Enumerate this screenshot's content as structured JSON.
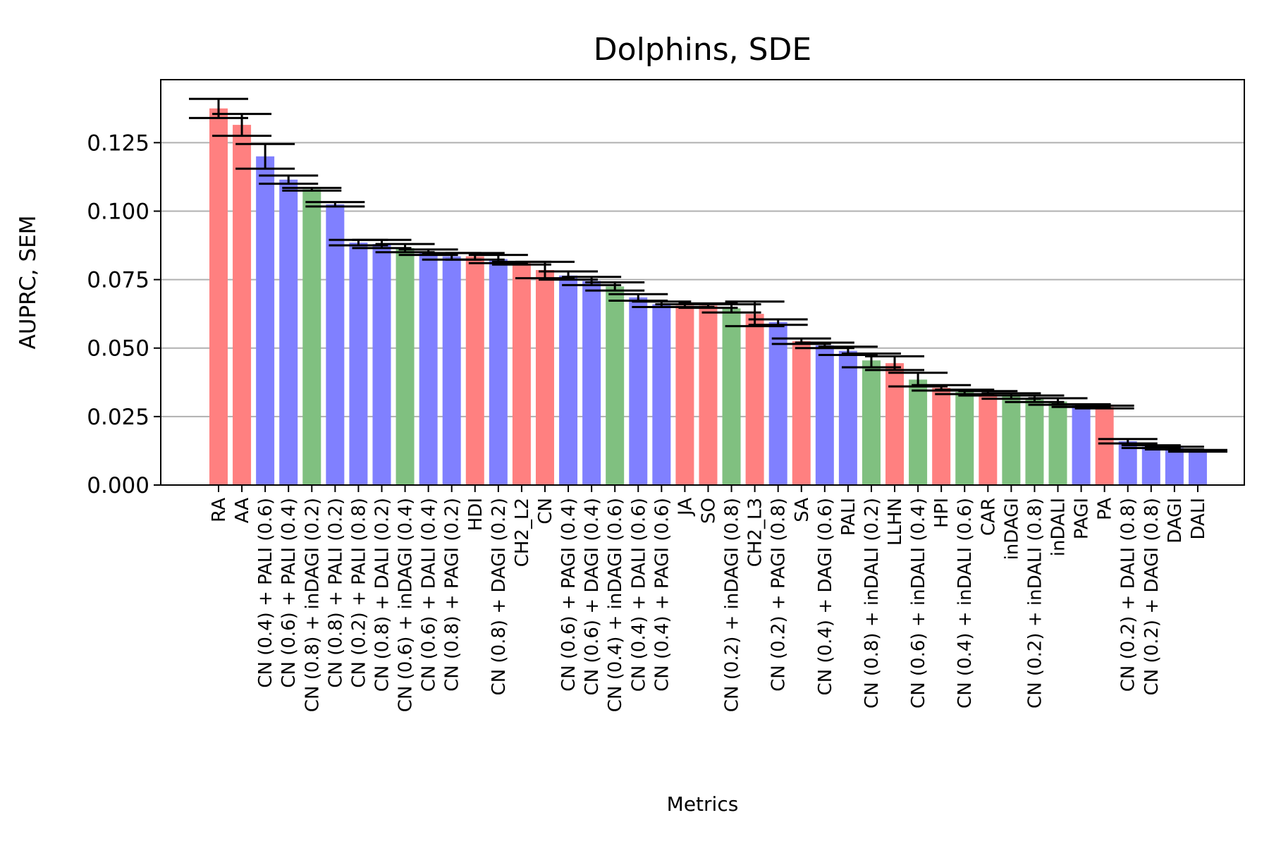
{
  "chart_data": {
    "type": "bar",
    "title": "Dolphins, SDE",
    "xlabel": "Metrics",
    "ylabel": "AUPRC, SEM",
    "ylim": [
      0,
      0.148
    ],
    "yticks": [
      0,
      0.025,
      0.05,
      0.075,
      0.1,
      0.125
    ],
    "ytick_labels": [
      "0.000",
      "0.025",
      "0.050",
      "0.075",
      "0.100",
      "0.125"
    ],
    "grid": "y",
    "colors": {
      "red": "#ff8080",
      "blue": "#8080ff",
      "green": "#80c080"
    },
    "bars": [
      {
        "label": "RA",
        "value": 0.1375,
        "err": 0.0035,
        "color": "red"
      },
      {
        "label": "AA",
        "value": 0.1315,
        "err": 0.004,
        "color": "red"
      },
      {
        "label": "CN (0.4) + PALI (0.6)",
        "value": 0.12,
        "err": 0.0045,
        "color": "blue"
      },
      {
        "label": "CN (0.6) + PALI (0.4)",
        "value": 0.1115,
        "err": 0.0015,
        "color": "blue"
      },
      {
        "label": "CN (0.8) + inDAGI (0.2)",
        "value": 0.108,
        "err": 0.0005,
        "color": "green"
      },
      {
        "label": "CN (0.8) + PALI (0.2)",
        "value": 0.1025,
        "err": 0.0008,
        "color": "blue"
      },
      {
        "label": "CN (0.2) + PALI (0.8)",
        "value": 0.0885,
        "err": 0.001,
        "color": "blue"
      },
      {
        "label": "CN (0.8) + DALI (0.2)",
        "value": 0.088,
        "err": 0.0015,
        "color": "blue"
      },
      {
        "label": "CN (0.6) + inDAGI (0.4)",
        "value": 0.0865,
        "err": 0.0015,
        "color": "green"
      },
      {
        "label": "CN (0.6) + DALI (0.4)",
        "value": 0.085,
        "err": 0.001,
        "color": "blue"
      },
      {
        "label": "CN (0.8) + PAGI (0.2)",
        "value": 0.0835,
        "err": 0.0012,
        "color": "blue"
      },
      {
        "label": "HDI",
        "value": 0.0835,
        "err": 0.0012,
        "color": "red"
      },
      {
        "label": "CN (0.8) + DAGI (0.2)",
        "value": 0.0825,
        "err": 0.0015,
        "color": "blue"
      },
      {
        "label": "CH2_L2",
        "value": 0.081,
        "err": 0.0005,
        "color": "red"
      },
      {
        "label": "CN",
        "value": 0.0785,
        "err": 0.003,
        "color": "red"
      },
      {
        "label": "CN (0.6) + PAGI (0.4)",
        "value": 0.0765,
        "err": 0.0015,
        "color": "blue"
      },
      {
        "label": "CN (0.6) + DAGI (0.4)",
        "value": 0.0745,
        "err": 0.0015,
        "color": "blue"
      },
      {
        "label": "CN (0.4) + inDAGI (0.6)",
        "value": 0.0725,
        "err": 0.0015,
        "color": "green"
      },
      {
        "label": "CN (0.4) + DALI (0.6)",
        "value": 0.0685,
        "err": 0.0012,
        "color": "blue"
      },
      {
        "label": "CN (0.4) + PAGI (0.6)",
        "value": 0.066,
        "err": 0.001,
        "color": "blue"
      },
      {
        "label": "JA",
        "value": 0.0655,
        "err": 0.0005,
        "color": "red"
      },
      {
        "label": "SO",
        "value": 0.0655,
        "err": 0.0008,
        "color": "red"
      },
      {
        "label": "CN (0.2) + inDAGI (0.8)",
        "value": 0.0645,
        "err": 0.0015,
        "color": "green"
      },
      {
        "label": "CH2_L3",
        "value": 0.0625,
        "err": 0.0045,
        "color": "red"
      },
      {
        "label": "CN (0.2) + PAGI (0.8)",
        "value": 0.0595,
        "err": 0.001,
        "color": "blue"
      },
      {
        "label": "SA",
        "value": 0.0525,
        "err": 0.001,
        "color": "red"
      },
      {
        "label": "CN (0.4) + DAGI (0.6)",
        "value": 0.051,
        "err": 0.001,
        "color": "blue"
      },
      {
        "label": "PALI",
        "value": 0.049,
        "err": 0.0015,
        "color": "blue"
      },
      {
        "label": "CN (0.8) + inDALI (0.2)",
        "value": 0.0455,
        "err": 0.0025,
        "color": "green"
      },
      {
        "label": "LLHN",
        "value": 0.0445,
        "err": 0.0025,
        "color": "red"
      },
      {
        "label": "CN (0.6) + inDALI (0.4)",
        "value": 0.0385,
        "err": 0.0025,
        "color": "green"
      },
      {
        "label": "HPI",
        "value": 0.0355,
        "err": 0.001,
        "color": "red"
      },
      {
        "label": "CN (0.4) + inDALI (0.6)",
        "value": 0.034,
        "err": 0.0008,
        "color": "green"
      },
      {
        "label": "CAR",
        "value": 0.0335,
        "err": 0.0008,
        "color": "red"
      },
      {
        "label": "inDAGI",
        "value": 0.0325,
        "err": 0.001,
        "color": "green"
      },
      {
        "label": "CN (0.2) + inDALI (0.8)",
        "value": 0.0315,
        "err": 0.0012,
        "color": "green"
      },
      {
        "label": "inDALI",
        "value": 0.0305,
        "err": 0.0012,
        "color": "green"
      },
      {
        "label": "PAGI",
        "value": 0.029,
        "err": 0.0005,
        "color": "blue"
      },
      {
        "label": "PA",
        "value": 0.0285,
        "err": 0.0005,
        "color": "red"
      },
      {
        "label": "CN (0.2) + DALI (0.8)",
        "value": 0.016,
        "err": 0.0008,
        "color": "blue"
      },
      {
        "label": "CN (0.2) + DAGI (0.8)",
        "value": 0.014,
        "err": 0.0005,
        "color": "blue"
      },
      {
        "label": "DAGI",
        "value": 0.0135,
        "err": 0.0005,
        "color": "blue"
      },
      {
        "label": "DALI",
        "value": 0.0125,
        "err": 0.0003,
        "color": "blue"
      }
    ]
  }
}
